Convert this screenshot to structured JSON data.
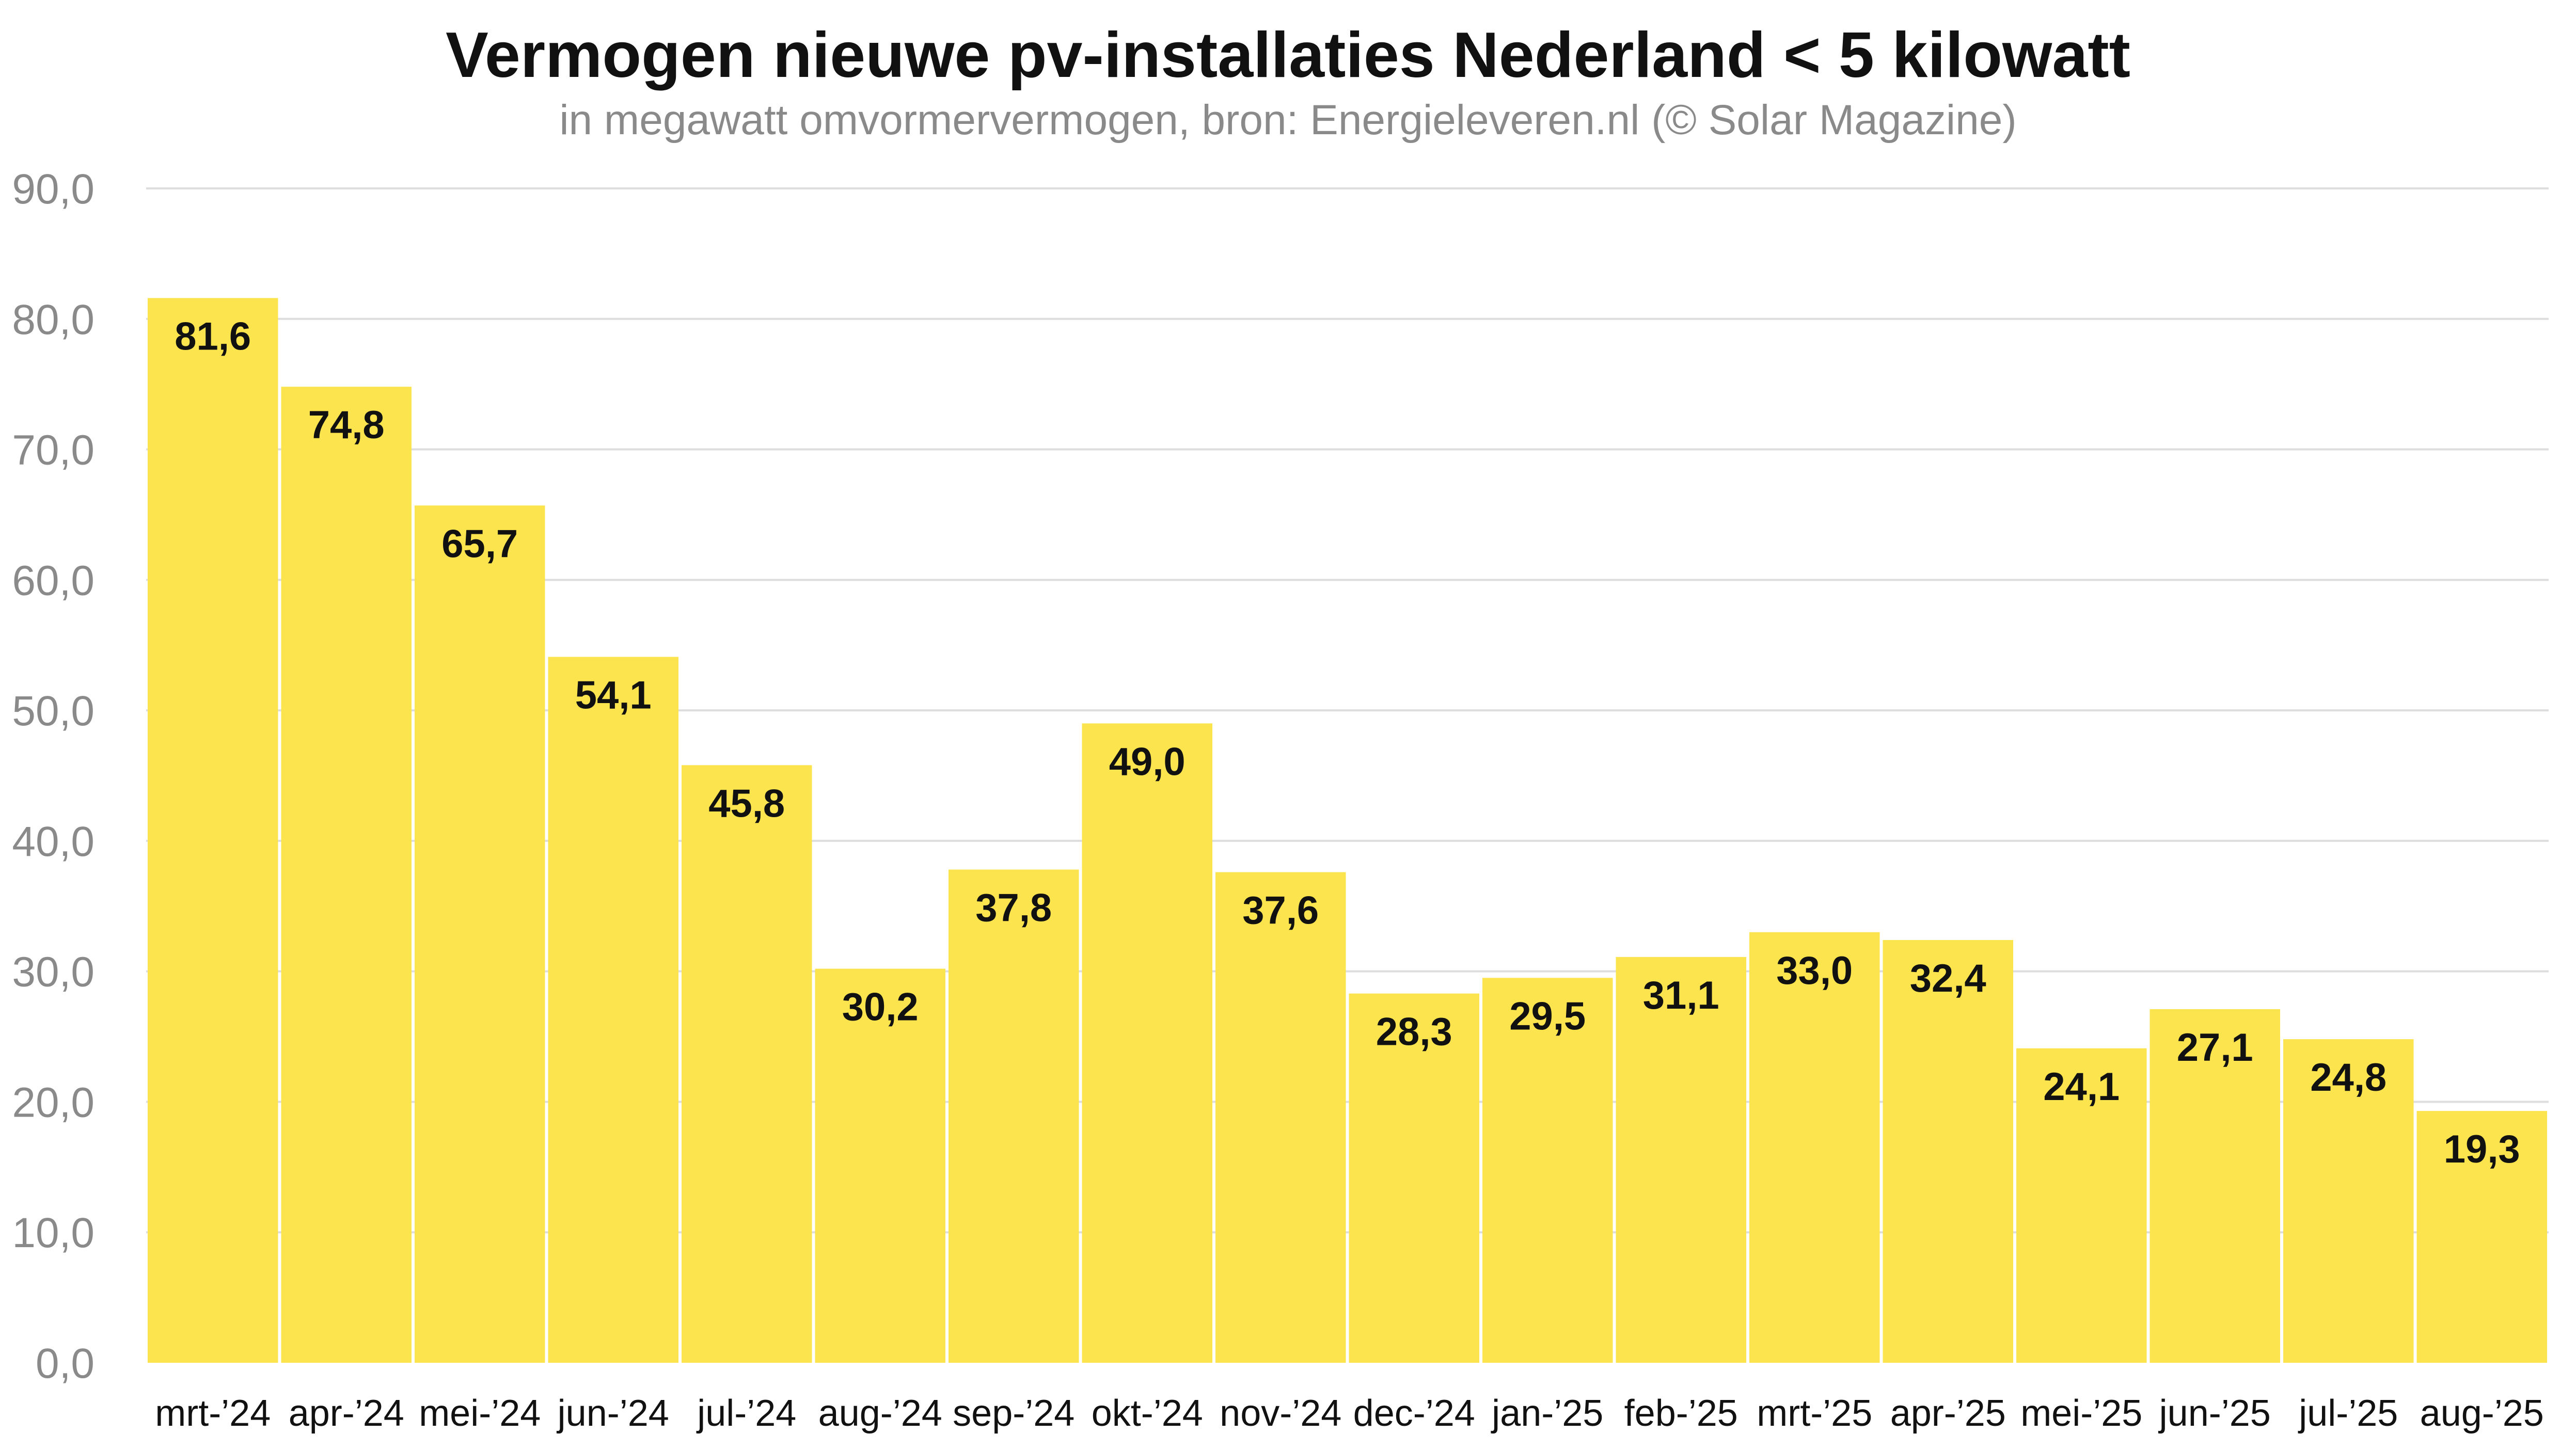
{
  "chart_data": {
    "type": "bar",
    "title": "Vermogen nieuwe pv-installaties Nederland < 5 kilowatt",
    "subtitle": "in megawatt omvormervermogen, bron: Energieleveren.nl (© Solar Magazine)",
    "xlabel": "",
    "ylabel": "",
    "categories": [
      "mrt-’24",
      "apr-’24",
      "mei-’24",
      "jun-’24",
      "jul-’24",
      "aug-’24",
      "sep-’24",
      "okt-’24",
      "nov-’24",
      "dec-’24",
      "jan-’25",
      "feb-’25",
      "mrt-’25",
      "apr-’25",
      "mei-’25",
      "jun-’25",
      "jul-’25",
      "aug-’25"
    ],
    "values": [
      81.6,
      74.8,
      65.7,
      54.1,
      45.8,
      30.2,
      37.8,
      49.0,
      37.6,
      28.3,
      29.5,
      31.1,
      33.0,
      32.4,
      24.1,
      27.1,
      24.8,
      19.3
    ],
    "value_labels": [
      "81,6",
      "74,8",
      "65,7",
      "54,1",
      "45,8",
      "30,2",
      "37,8",
      "49,0",
      "37,6",
      "28,3",
      "29,5",
      "31,1",
      "33,0",
      "32,4",
      "24,1",
      "27,1",
      "24,8",
      "19,3"
    ],
    "ylim": [
      0,
      90
    ],
    "yticks": [
      0,
      10,
      20,
      30,
      40,
      50,
      60,
      70,
      80,
      90
    ],
    "ytick_labels": [
      "0,0",
      "10,0",
      "20,0",
      "30,0",
      "40,0",
      "50,0",
      "60,0",
      "70,0",
      "80,0",
      "90,0"
    ],
    "grid": true,
    "legend": "none",
    "colors": {
      "bar": "#fbe44d",
      "grid": "#dddddd",
      "tick_text": "#8a8a8a",
      "category_text": "#111111",
      "value_label": "#111111"
    }
  }
}
